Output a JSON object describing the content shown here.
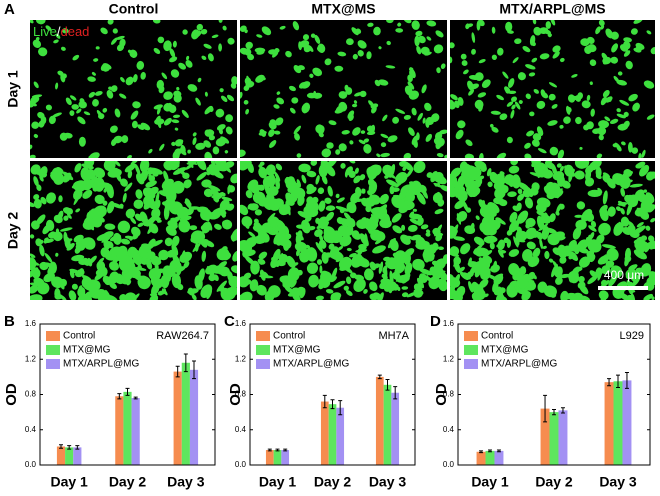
{
  "panel_a": {
    "label": "A",
    "columns": [
      "Control",
      "MTX@MS",
      "MTX/ARPL@MS"
    ],
    "rows": [
      "Day 1",
      "Day 2"
    ],
    "stain_label": [
      "Live",
      "/",
      "dead"
    ],
    "scale_bar": "400 μm"
  },
  "chart_data": [
    {
      "type": "bar",
      "panel": "B",
      "ylabel": "OD",
      "annotation": "RAW264.7",
      "categories": [
        "Day 1",
        "Day 2",
        "Day 3"
      ],
      "series": [
        {
          "name": "Control",
          "color": "#f68c4f",
          "values": [
            0.21,
            0.78,
            1.06
          ],
          "errors": [
            0.02,
            0.03,
            0.06
          ]
        },
        {
          "name": "MTX@MG",
          "color": "#5ee65e",
          "values": [
            0.2,
            0.83,
            1.16
          ],
          "errors": [
            0.02,
            0.04,
            0.1
          ]
        },
        {
          "name": "MTX/ARPL@MG",
          "color": "#a391f3",
          "values": [
            0.2,
            0.76,
            1.08
          ],
          "errors": [
            0.02,
            0.01,
            0.1
          ]
        }
      ],
      "ylim": [
        0,
        1.6
      ],
      "yticks": [
        {
          "value": 0,
          "label": "0.0"
        },
        0.4,
        0.8,
        1.2,
        1.6
      ]
    },
    {
      "type": "bar",
      "panel": "C",
      "ylabel": "OD",
      "annotation": "MH7A",
      "categories": [
        "Day 1",
        "Day 2",
        "Day 3"
      ],
      "series": [
        {
          "name": "Control",
          "color": "#f68c4f",
          "values": [
            0.17,
            0.72,
            1.0
          ],
          "errors": [
            0.01,
            0.07,
            0.02
          ]
        },
        {
          "name": "MTX@MG",
          "color": "#5ee65e",
          "values": [
            0.17,
            0.69,
            0.91
          ],
          "errors": [
            0.01,
            0.05,
            0.06
          ]
        },
        {
          "name": "MTX/ARPL@MG",
          "color": "#a391f3",
          "values": [
            0.17,
            0.65,
            0.82
          ],
          "errors": [
            0.01,
            0.08,
            0.07
          ]
        }
      ],
      "ylim": [
        0,
        1.6
      ],
      "yticks": [
        {
          "value": 0,
          "label": "0.0"
        },
        0.4,
        0.8,
        1.2,
        1.6
      ]
    },
    {
      "type": "bar",
      "panel": "D",
      "ylabel": "OD",
      "annotation": "L929",
      "categories": [
        "Day 1",
        "Day 2",
        "Day 3"
      ],
      "series": [
        {
          "name": "Control",
          "color": "#f68c4f",
          "values": [
            0.15,
            0.64,
            0.94
          ],
          "errors": [
            0.01,
            0.15,
            0.04
          ]
        },
        {
          "name": "MTX@MG",
          "color": "#5ee65e",
          "values": [
            0.16,
            0.6,
            0.95
          ],
          "errors": [
            0.01,
            0.03,
            0.07
          ]
        },
        {
          "name": "MTX/ARPL@MG",
          "color": "#a391f3",
          "values": [
            0.16,
            0.62,
            0.96
          ],
          "errors": [
            0.01,
            0.03,
            0.09
          ]
        }
      ],
      "ylim": [
        0,
        1.6
      ],
      "yticks": [
        {
          "value": 0,
          "label": "0.0"
        },
        0.4,
        0.8,
        1.2,
        1.6
      ]
    }
  ]
}
